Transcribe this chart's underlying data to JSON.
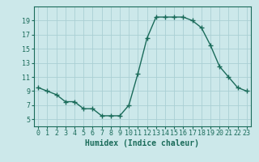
{
  "x": [
    0,
    1,
    2,
    3,
    4,
    5,
    6,
    7,
    8,
    9,
    10,
    11,
    12,
    13,
    14,
    15,
    16,
    17,
    18,
    19,
    20,
    21,
    22,
    23
  ],
  "y": [
    9.5,
    9.0,
    8.5,
    7.5,
    7.5,
    6.5,
    6.5,
    5.5,
    5.5,
    5.5,
    7.0,
    11.5,
    16.5,
    19.5,
    19.5,
    19.5,
    19.5,
    19.0,
    18.0,
    15.5,
    12.5,
    11.0,
    9.5,
    9.0
  ],
  "xlabel": "Humidex (Indice chaleur)",
  "line_color": "#1a6b5a",
  "marker": "+",
  "marker_size": 4,
  "marker_lw": 1.0,
  "line_width": 1.0,
  "bg_color": "#cce8ea",
  "grid_color": "#aacfd4",
  "axis_color": "#1a6b5a",
  "tick_color": "#1a6b5a",
  "ylim": [
    4,
    21
  ],
  "xlim": [
    -0.5,
    23.5
  ],
  "yticks": [
    5,
    7,
    9,
    11,
    13,
    15,
    17,
    19
  ],
  "xticks": [
    0,
    1,
    2,
    3,
    4,
    5,
    6,
    7,
    8,
    9,
    10,
    11,
    12,
    13,
    14,
    15,
    16,
    17,
    18,
    19,
    20,
    21,
    22,
    23
  ],
  "tick_fontsize": 6,
  "xlabel_fontsize": 7
}
